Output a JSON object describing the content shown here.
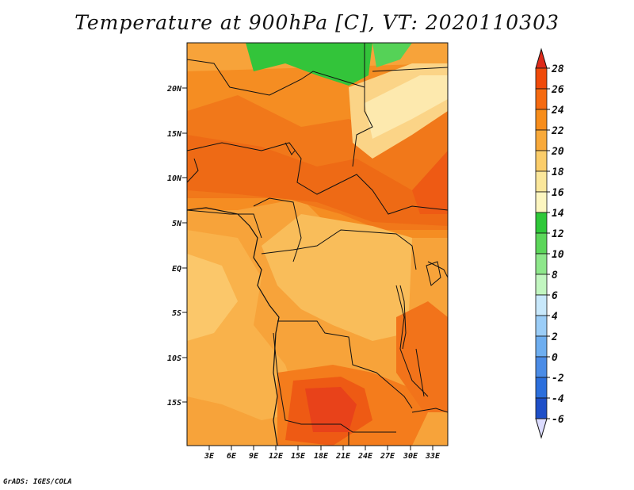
{
  "title": "Temperature at 900hPa [C], VT: 2020110303",
  "credit": "GrADS: IGES/COLA",
  "lat_ticks": [
    "20N",
    "15N",
    "10N",
    "5N",
    "EQ",
    "5S",
    "10S",
    "15S"
  ],
  "lon_ticks": [
    "3E",
    "6E",
    "9E",
    "12E",
    "15E",
    "18E",
    "21E",
    "24E",
    "27E",
    "30E",
    "33E"
  ],
  "colorbar": {
    "labels": [
      "28",
      "26",
      "24",
      "22",
      "20",
      "18",
      "16",
      "14",
      "12",
      "10",
      "8",
      "6",
      "4",
      "2",
      "0",
      "-2",
      "-4",
      "-6"
    ],
    "top_color": "#dd2a1a",
    "bottom_color": "#dcdcff",
    "colors": [
      "#f04a0a",
      "#f56a10",
      "#f78d1b",
      "#f8a93a",
      "#fbcd6a",
      "#fbe79b",
      "#fdf6c0",
      "#2fc839",
      "#5cd65a",
      "#8ee78b",
      "#c2f6c0",
      "#c8e8fb",
      "#9bcdf7",
      "#6eaef0",
      "#4b8ce6",
      "#2c6fdc",
      "#1e4fc8",
      "#1d2ea8",
      "#0e0e78"
    ]
  }
}
